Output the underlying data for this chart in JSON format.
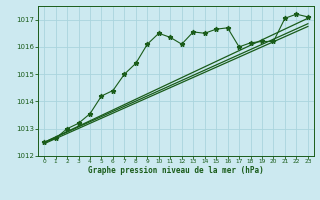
{
  "title": "Graphe pression niveau de la mer (hPa)",
  "bg_color": "#cce9f0",
  "grid_color": "#aad4dd",
  "line_color": "#1a5c1a",
  "x_min": 0,
  "x_max": 23,
  "y_min": 1012,
  "y_max": 1017.5,
  "yticks": [
    1012,
    1013,
    1014,
    1015,
    1016,
    1017
  ],
  "xticks": [
    0,
    1,
    2,
    3,
    4,
    5,
    6,
    7,
    8,
    9,
    10,
    11,
    12,
    13,
    14,
    15,
    16,
    17,
    18,
    19,
    20,
    21,
    22,
    23
  ],
  "main_series": [
    [
      0,
      1012.5
    ],
    [
      1,
      1012.65
    ],
    [
      2,
      1013.0
    ],
    [
      3,
      1013.2
    ],
    [
      4,
      1013.55
    ],
    [
      5,
      1014.2
    ],
    [
      6,
      1014.4
    ],
    [
      7,
      1015.0
    ],
    [
      8,
      1015.4
    ],
    [
      9,
      1016.1
    ],
    [
      10,
      1016.5
    ],
    [
      11,
      1016.35
    ],
    [
      12,
      1016.1
    ],
    [
      13,
      1016.55
    ],
    [
      14,
      1016.5
    ],
    [
      15,
      1016.65
    ],
    [
      16,
      1016.7
    ],
    [
      17,
      1016.0
    ],
    [
      18,
      1016.15
    ],
    [
      19,
      1016.2
    ],
    [
      20,
      1016.2
    ],
    [
      21,
      1017.05
    ],
    [
      22,
      1017.2
    ],
    [
      23,
      1017.1
    ]
  ],
  "smooth_series1": [
    [
      0,
      1012.5
    ],
    [
      23,
      1017.05
    ]
  ],
  "smooth_series2": [
    [
      0,
      1012.5
    ],
    [
      23,
      1016.85
    ]
  ],
  "smooth_series3": [
    [
      0,
      1012.45
    ],
    [
      23,
      1016.75
    ]
  ]
}
